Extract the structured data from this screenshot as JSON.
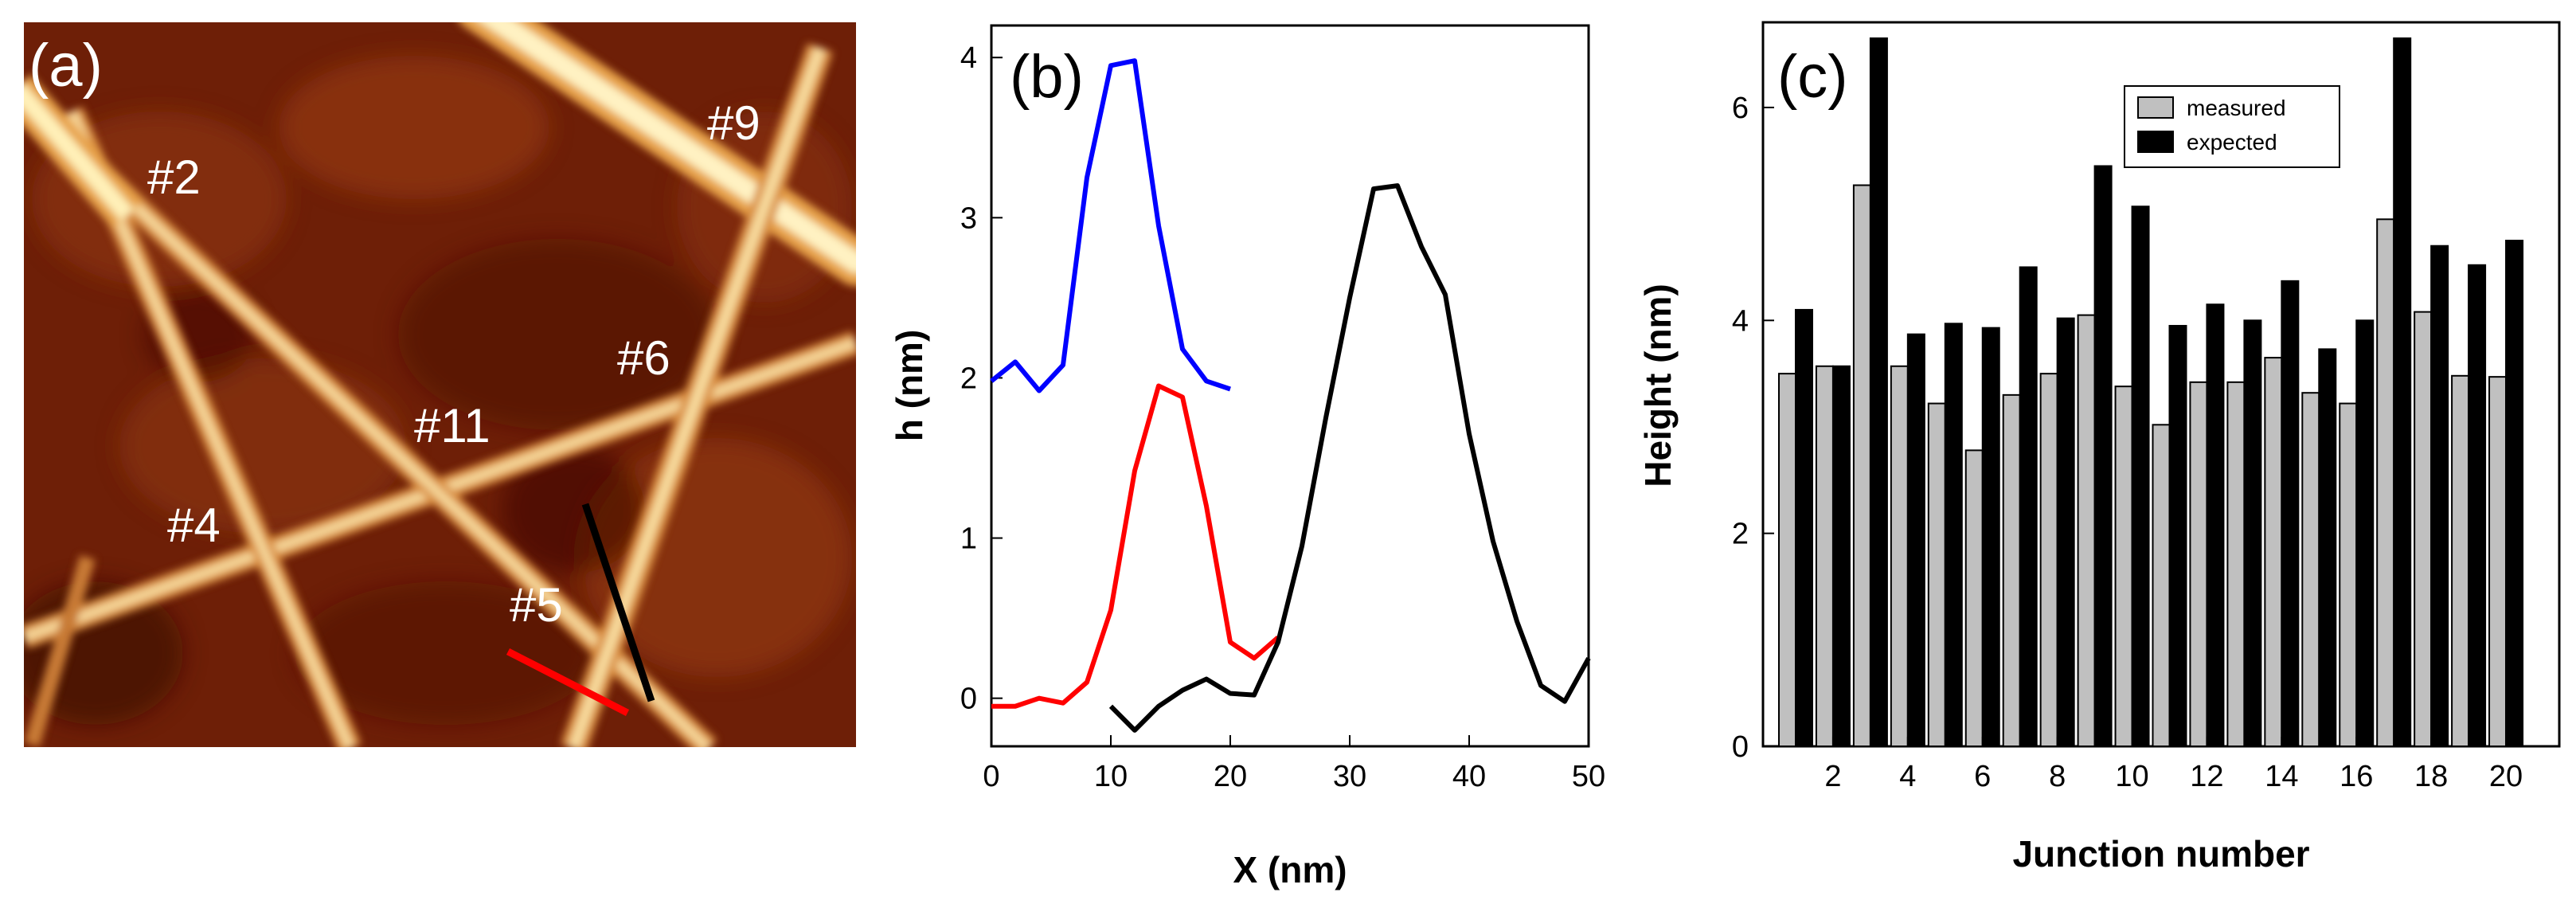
{
  "panel_a": {
    "label": "(a)",
    "fiber_labels": [
      "#2",
      "#9",
      "#6",
      "#11",
      "#4",
      "#5"
    ],
    "colors": {
      "background": "#6e1f07",
      "fiber_core": "#fff0b8",
      "fiber_edge": "#e8a64e",
      "line_black": "#000000",
      "line_red": "#ff0000"
    }
  },
  "chart_data": [
    {
      "id": "b",
      "type": "line",
      "panel_label": "(b)",
      "xlabel": "X (nm)",
      "ylabel": "h (nm)",
      "xlim": [
        0,
        50
      ],
      "ylim": [
        -0.3,
        4.2
      ],
      "xticks": [
        0,
        10,
        20,
        30,
        40,
        50
      ],
      "yticks": [
        0,
        1,
        2,
        3,
        4
      ],
      "series": [
        {
          "name": "blue",
          "color": "#0000ff",
          "x": [
            0,
            2,
            4,
            6,
            8,
            10,
            12,
            14,
            16,
            18,
            20
          ],
          "y": [
            1.98,
            2.1,
            1.92,
            2.08,
            3.25,
            3.95,
            3.98,
            2.95,
            2.18,
            1.98,
            1.93
          ]
        },
        {
          "name": "red",
          "color": "#ff0000",
          "x": [
            0,
            2,
            4,
            6,
            8,
            10,
            12,
            14,
            16,
            18,
            20,
            22,
            24
          ],
          "y": [
            -0.05,
            -0.05,
            0.0,
            -0.03,
            0.1,
            0.55,
            1.42,
            1.95,
            1.88,
            1.2,
            0.35,
            0.25,
            0.38
          ]
        },
        {
          "name": "black",
          "color": "#000000",
          "x": [
            10,
            12,
            14,
            16,
            18,
            20,
            22,
            24,
            26,
            28,
            30,
            32,
            34,
            36,
            38,
            40,
            42,
            44,
            46,
            48,
            50
          ],
          "y": [
            -0.05,
            -0.2,
            -0.05,
            0.05,
            0.12,
            0.03,
            0.02,
            0.35,
            0.95,
            1.75,
            2.5,
            3.18,
            3.2,
            2.82,
            2.52,
            1.65,
            0.98,
            0.48,
            0.08,
            -0.02,
            0.25
          ]
        }
      ]
    },
    {
      "id": "c",
      "type": "bar",
      "panel_label": "(c)",
      "xlabel": "Junction number",
      "ylabel": "Height (nm)",
      "ylim": [
        0,
        6.8
      ],
      "yticks": [
        0,
        2,
        4,
        6
      ],
      "xtick_labels": [
        "2",
        "4",
        "6",
        "8",
        "10",
        "12",
        "14",
        "16",
        "18",
        "20"
      ],
      "categories": [
        1,
        2,
        3,
        4,
        5,
        6,
        7,
        8,
        9,
        10,
        11,
        12,
        13,
        14,
        15,
        16,
        17,
        18,
        19,
        20
      ],
      "series": [
        {
          "name": "measured",
          "color": "#c0c0c0",
          "values": [
            3.5,
            3.57,
            5.27,
            3.57,
            3.22,
            2.78,
            3.3,
            3.5,
            4.05,
            3.38,
            3.02,
            3.42,
            3.42,
            3.65,
            3.32,
            3.22,
            4.95,
            4.08,
            3.48,
            3.47
          ]
        },
        {
          "name": "expected",
          "color": "#000000",
          "values": [
            4.1,
            3.57,
            6.65,
            3.87,
            3.97,
            3.93,
            4.5,
            4.02,
            5.45,
            5.07,
            3.95,
            4.15,
            4.0,
            4.37,
            3.73,
            4.0,
            6.65,
            4.7,
            4.52,
            4.75
          ]
        }
      ],
      "legend_position": "top-right"
    }
  ]
}
